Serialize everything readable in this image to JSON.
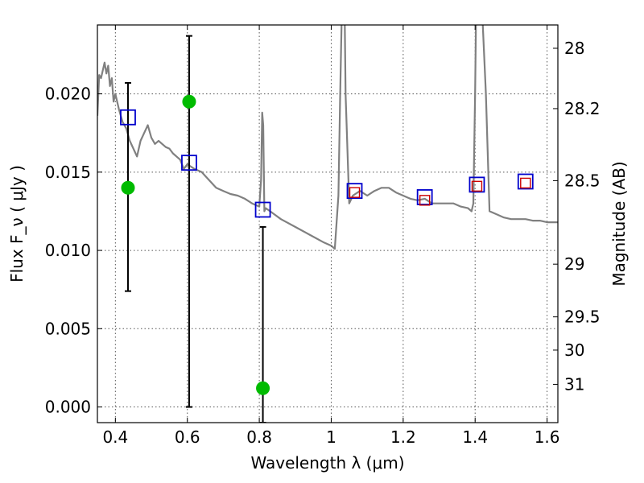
{
  "chart_data": {
    "type": "line",
    "xlabel": "Wavelength  λ (μm)",
    "ylabel": "Flux  F_ν  ( μJy )",
    "ylabel_right": "Magnitude (AB)",
    "xlim": [
      0.35,
      1.63
    ],
    "ylim": [
      -0.001,
      0.0244
    ],
    "x_ticks": [
      0.4,
      0.6,
      0.8,
      1.0,
      1.2,
      1.4,
      1.6
    ],
    "x_tick_labels": [
      "0.4",
      "0.6",
      "0.8",
      "1",
      "1.2",
      "1.4",
      "1.6"
    ],
    "y_ticks": [
      0.0,
      0.005,
      0.01,
      0.015,
      0.02
    ],
    "y_tick_labels": [
      "0.000",
      "0.005",
      "0.010",
      "0.015",
      "0.020"
    ],
    "right_ticks": [
      {
        "label": "28",
        "mag": 28.0
      },
      {
        "label": "28.2",
        "mag": 28.2
      },
      {
        "label": "28.5",
        "mag": 28.5
      },
      {
        "label": "29",
        "mag": 29.0
      },
      {
        "label": "29.5",
        "mag": 29.5
      },
      {
        "label": "30",
        "mag": 30.0
      },
      {
        "label": "31",
        "mag": 31.0
      }
    ],
    "grid": true,
    "colors": {
      "spectrum": "#808080",
      "model": "#0000cc",
      "synthetic": "#cc0000",
      "observed": "#00bb00",
      "errorbar": "#000000"
    },
    "series": [
      {
        "kind": "spectrum",
        "x": [
          0.35,
          0.355,
          0.36,
          0.365,
          0.37,
          0.375,
          0.38,
          0.385,
          0.39,
          0.395,
          0.4,
          0.41,
          0.42,
          0.43,
          0.44,
          0.45,
          0.46,
          0.47,
          0.48,
          0.49,
          0.5,
          0.51,
          0.52,
          0.53,
          0.54,
          0.55,
          0.56,
          0.57,
          0.58,
          0.59,
          0.6,
          0.62,
          0.64,
          0.66,
          0.68,
          0.7,
          0.72,
          0.74,
          0.76,
          0.78,
          0.8,
          0.805,
          0.808,
          0.811,
          0.814,
          0.818,
          0.83,
          0.86,
          0.9,
          0.94,
          0.98,
          1.0,
          1.01,
          1.02,
          1.025,
          1.03,
          1.035,
          1.04,
          1.05,
          1.06,
          1.08,
          1.1,
          1.12,
          1.14,
          1.16,
          1.18,
          1.2,
          1.22,
          1.24,
          1.26,
          1.28,
          1.3,
          1.32,
          1.34,
          1.36,
          1.38,
          1.39,
          1.395,
          1.4,
          1.405,
          1.41,
          1.415,
          1.42,
          1.43,
          1.44,
          1.46,
          1.48,
          1.5,
          1.52,
          1.54,
          1.56,
          1.58,
          1.6,
          1.63
        ],
        "y": [
          0.0186,
          0.0212,
          0.021,
          0.0215,
          0.022,
          0.0213,
          0.0218,
          0.0205,
          0.021,
          0.0195,
          0.02,
          0.019,
          0.0182,
          0.0178,
          0.017,
          0.0165,
          0.016,
          0.017,
          0.0175,
          0.018,
          0.0172,
          0.0168,
          0.017,
          0.0168,
          0.0166,
          0.0165,
          0.0162,
          0.016,
          0.0158,
          0.0152,
          0.0155,
          0.0152,
          0.015,
          0.0145,
          0.014,
          0.0138,
          0.0136,
          0.0135,
          0.0133,
          0.013,
          0.0128,
          0.0145,
          0.0188,
          0.018,
          0.0125,
          0.0127,
          0.0125,
          0.012,
          0.0115,
          0.011,
          0.0105,
          0.0103,
          0.0101,
          0.0135,
          0.02,
          0.026,
          0.03,
          0.02,
          0.013,
          0.0135,
          0.0138,
          0.0135,
          0.0138,
          0.014,
          0.014,
          0.0137,
          0.0135,
          0.0133,
          0.0132,
          0.0133,
          0.013,
          0.013,
          0.013,
          0.013,
          0.0128,
          0.0127,
          0.0125,
          0.013,
          0.02,
          0.03,
          0.035,
          0.03,
          0.025,
          0.02,
          0.0125,
          0.0123,
          0.0121,
          0.012,
          0.012,
          0.012,
          0.0119,
          0.0119,
          0.0118,
          0.0118
        ]
      },
      {
        "kind": "model",
        "marker": "square",
        "x": [
          0.435,
          0.605,
          0.81,
          1.065,
          1.26,
          1.405,
          1.54
        ],
        "y": [
          0.0185,
          0.0156,
          0.0126,
          0.0138,
          0.0134,
          0.0142,
          0.0144
        ]
      },
      {
        "kind": "synthetic",
        "marker": "square",
        "x": [
          1.065,
          1.26,
          1.405,
          1.54
        ],
        "y": [
          0.0137,
          0.0132,
          0.0141,
          0.0143
        ]
      },
      {
        "kind": "observed",
        "marker": "circle",
        "x": [
          0.435,
          0.605,
          0.81
        ],
        "y": [
          0.014,
          0.0195,
          0.0012
        ],
        "yerr_low": [
          0.0074,
          0.0,
          -0.001
        ],
        "yerr_high": [
          0.0207,
          0.0237,
          0.0115
        ]
      }
    ]
  }
}
